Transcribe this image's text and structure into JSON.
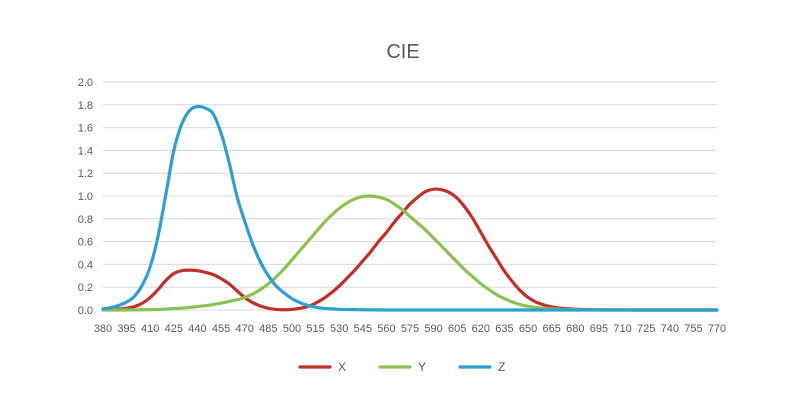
{
  "chart_data": {
    "type": "line",
    "title": "CIE",
    "xlabel": "",
    "ylabel": "",
    "ylim": [
      0,
      2.0
    ],
    "yticks": [
      "0.0",
      "0.2",
      "0.4",
      "0.6",
      "0.8",
      "1.0",
      "1.2",
      "1.4",
      "1.6",
      "1.8",
      "2.0"
    ],
    "grid": true,
    "legend_position": "bottom",
    "x": [
      380,
      385,
      390,
      395,
      400,
      405,
      410,
      415,
      420,
      425,
      430,
      435,
      440,
      445,
      450,
      455,
      460,
      465,
      470,
      475,
      480,
      485,
      490,
      495,
      500,
      505,
      510,
      515,
      520,
      525,
      530,
      535,
      540,
      545,
      550,
      555,
      560,
      565,
      570,
      575,
      580,
      585,
      590,
      595,
      600,
      605,
      610,
      615,
      620,
      625,
      630,
      635,
      640,
      645,
      650,
      655,
      660,
      665,
      670,
      675,
      680,
      685,
      690,
      695,
      700,
      705,
      710,
      715,
      720,
      725,
      730,
      735,
      740,
      745,
      750,
      755,
      760,
      765,
      770
    ],
    "x_tick_labels": [
      "380",
      "395",
      "410",
      "425",
      "440",
      "455",
      "470",
      "485",
      "500",
      "515",
      "530",
      "545",
      "560",
      "575",
      "590",
      "605",
      "620",
      "635",
      "650",
      "665",
      "680",
      "695",
      "710",
      "725",
      "740",
      "755",
      "770"
    ],
    "series": [
      {
        "name": "X",
        "color": "#c0302b",
        "values": [
          0.002,
          0.004,
          0.008,
          0.015,
          0.03,
          0.06,
          0.11,
          0.18,
          0.26,
          0.32,
          0.345,
          0.35,
          0.345,
          0.33,
          0.31,
          0.275,
          0.23,
          0.17,
          0.11,
          0.065,
          0.035,
          0.015,
          0.005,
          0.002,
          0.005,
          0.015,
          0.03,
          0.06,
          0.1,
          0.15,
          0.21,
          0.28,
          0.35,
          0.43,
          0.51,
          0.6,
          0.68,
          0.77,
          0.85,
          0.93,
          0.99,
          1.04,
          1.06,
          1.055,
          1.03,
          0.98,
          0.9,
          0.8,
          0.68,
          0.56,
          0.45,
          0.34,
          0.25,
          0.17,
          0.11,
          0.07,
          0.045,
          0.028,
          0.017,
          0.011,
          0.007,
          0.004,
          0.003,
          0.002,
          0.001,
          0.001,
          0.001,
          0.0,
          0.0,
          0.0,
          0.0,
          0.0,
          0.0,
          0.0,
          0.0,
          0.0,
          0.0,
          0.0,
          0.0
        ]
      },
      {
        "name": "Y",
        "color": "#8cc152",
        "values": [
          0.0,
          0.0,
          0.0,
          0.0,
          0.001,
          0.002,
          0.003,
          0.005,
          0.008,
          0.012,
          0.017,
          0.023,
          0.03,
          0.038,
          0.048,
          0.06,
          0.075,
          0.09,
          0.11,
          0.14,
          0.18,
          0.23,
          0.29,
          0.36,
          0.44,
          0.52,
          0.6,
          0.68,
          0.76,
          0.83,
          0.89,
          0.94,
          0.975,
          0.995,
          1.0,
          0.99,
          0.97,
          0.93,
          0.88,
          0.82,
          0.76,
          0.7,
          0.63,
          0.56,
          0.49,
          0.42,
          0.35,
          0.29,
          0.23,
          0.18,
          0.135,
          0.1,
          0.07,
          0.048,
          0.032,
          0.022,
          0.015,
          0.01,
          0.006,
          0.004,
          0.003,
          0.002,
          0.001,
          0.001,
          0.0,
          0.0,
          0.0,
          0.0,
          0.0,
          0.0,
          0.0,
          0.0,
          0.0,
          0.0,
          0.0,
          0.0,
          0.0,
          0.0,
          0.0
        ]
      },
      {
        "name": "Z",
        "color": "#2e9fd1",
        "values": [
          0.01,
          0.02,
          0.04,
          0.07,
          0.12,
          0.22,
          0.38,
          0.65,
          1.02,
          1.4,
          1.63,
          1.75,
          1.785,
          1.77,
          1.72,
          1.55,
          1.3,
          1.0,
          0.78,
          0.58,
          0.42,
          0.3,
          0.21,
          0.15,
          0.1,
          0.065,
          0.04,
          0.025,
          0.015,
          0.01,
          0.006,
          0.004,
          0.003,
          0.002,
          0.001,
          0.001,
          0.0,
          0.0,
          0.0,
          0.0,
          0.0,
          0.0,
          0.0,
          0.0,
          0.0,
          0.0,
          0.0,
          0.0,
          0.0,
          0.0,
          0.0,
          0.0,
          0.0,
          0.0,
          0.0,
          0.0,
          0.0,
          0.0,
          0.0,
          0.0,
          0.0,
          0.0,
          0.0,
          0.0,
          0.0,
          0.0,
          0.0,
          0.0,
          0.0,
          0.0,
          0.0,
          0.0,
          0.0,
          0.0,
          0.0,
          0.0,
          0.0,
          0.0,
          0.0
        ]
      }
    ]
  }
}
